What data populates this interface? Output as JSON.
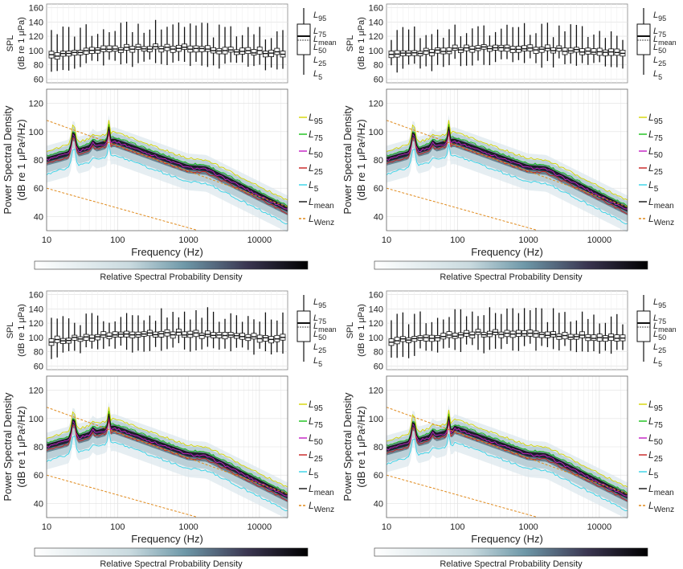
{
  "colors": {
    "L95": "#d4d400",
    "L75": "#16c016",
    "L50": "#c21bc2",
    "L25": "#c81e1e",
    "L5": "#34d2e6",
    "Lmean": "#111111",
    "LWenz": "#e08a1c",
    "grid": "#dddddd",
    "axis": "#222222",
    "density_low": "#ffffff",
    "density_mid": "#6e98a8",
    "density_high": "#000000"
  },
  "chart_data": [
    {
      "type": "composite",
      "panel": "top-left",
      "box_plot": {
        "ylabel_line1": "SPL",
        "ylabel_line2": "(dB re 1 μPa)",
        "ylim": [
          55,
          165
        ],
        "yticks": [
          "60",
          "80",
          "100",
          "120",
          "140",
          "160"
        ],
        "legend": {
          "L95": "95",
          "L75": "75",
          "Lmean": "mean",
          "L50": "50",
          "L25": "25",
          "L5": "5"
        }
      },
      "spectral_density": {
        "xlabel": "Frequency (Hz)",
        "ylabel_line1": "Power Spectral Density",
        "ylabel_line2": "(dB re 1 μPa²/Hz)",
        "xscale": "log",
        "xlim": [
          10,
          25000
        ],
        "ylim": [
          30,
          130
        ],
        "xticks": [
          "10",
          "100",
          "1000",
          "10000"
        ],
        "yticks": [
          "40",
          "60",
          "80",
          "100",
          "120"
        ],
        "colorbar_label": "Relative Spectral Probability Density",
        "legend_items": [
          {
            "key": "L95",
            "sub": "95"
          },
          {
            "key": "L75",
            "sub": "75"
          },
          {
            "key": "L50",
            "sub": "50"
          },
          {
            "key": "L25",
            "sub": "25"
          },
          {
            "key": "L5",
            "sub": "5"
          },
          {
            "key": "Lmean",
            "sub": "mean"
          },
          {
            "key": "LWenz",
            "sub": "Wenz"
          }
        ]
      }
    },
    {
      "type": "composite",
      "panel": "top-right",
      "box_plot": {
        "ylabel_line1": "SPL",
        "ylabel_line2": "(dB re 1 μPa)",
        "ylim": [
          55,
          165
        ],
        "yticks": [
          "60",
          "80",
          "100",
          "120",
          "140",
          "160"
        ],
        "legend": {
          "L95": "95",
          "L75": "75",
          "Lmean": "mean",
          "L50": "50",
          "L25": "25",
          "L5": "5"
        }
      },
      "spectral_density": {
        "xlabel": "Frequency (Hz)",
        "ylabel_line1": "Power Spectral Density",
        "ylabel_line2": "(dB re 1 μPa²/Hz)",
        "xscale": "log",
        "xlim": [
          10,
          25000
        ],
        "ylim": [
          30,
          130
        ],
        "xticks": [
          "10",
          "100",
          "1000",
          "10000"
        ],
        "yticks": [
          "40",
          "60",
          "80",
          "100",
          "120"
        ],
        "colorbar_label": "Relative Spectral Probability Density",
        "legend_items": [
          {
            "key": "L95",
            "sub": "95"
          },
          {
            "key": "L75",
            "sub": "75"
          },
          {
            "key": "L50",
            "sub": "50"
          },
          {
            "key": "L25",
            "sub": "25"
          },
          {
            "key": "L5",
            "sub": "5"
          },
          {
            "key": "Lmean",
            "sub": "mean"
          },
          {
            "key": "LWenz",
            "sub": "Wenz"
          }
        ]
      }
    },
    {
      "type": "composite",
      "panel": "bottom-left",
      "box_plot": {
        "ylabel_line1": "SPL",
        "ylabel_line2": "(dB re 1 μPa)",
        "ylim": [
          55,
          165
        ],
        "yticks": [
          "60",
          "80",
          "100",
          "120",
          "140",
          "160"
        ],
        "legend": {
          "L95": "95",
          "L75": "75",
          "Lmean": "mean",
          "L50": "50",
          "L25": "25",
          "L5": "5"
        }
      },
      "spectral_density": {
        "xlabel": "Frequency (Hz)",
        "ylabel_line1": "Power Spectral Density",
        "ylabel_line2": "(dB re 1 μPa²/Hz)",
        "xscale": "log",
        "xlim": [
          10,
          25000
        ],
        "ylim": [
          30,
          130
        ],
        "xticks": [
          "10",
          "100",
          "1000",
          "10000"
        ],
        "yticks": [
          "40",
          "60",
          "80",
          "100",
          "120"
        ],
        "colorbar_label": "Relative Spectral Probability Density",
        "legend_items": [
          {
            "key": "L95",
            "sub": "95"
          },
          {
            "key": "L75",
            "sub": "75"
          },
          {
            "key": "L50",
            "sub": "50"
          },
          {
            "key": "L25",
            "sub": "25"
          },
          {
            "key": "L5",
            "sub": "5"
          },
          {
            "key": "Lmean",
            "sub": "mean"
          },
          {
            "key": "LWenz",
            "sub": "Wenz"
          }
        ]
      }
    },
    {
      "type": "composite",
      "panel": "bottom-right",
      "box_plot": {
        "ylabel_line1": "SPL",
        "ylabel_line2": "(dB re 1 μPa)",
        "ylim": [
          55,
          165
        ],
        "yticks": [
          "60",
          "80",
          "100",
          "120",
          "140",
          "160"
        ],
        "legend": {
          "L95": "95",
          "L75": "75",
          "Lmean": "mean",
          "L50": "50",
          "L25": "25",
          "L5": "5"
        }
      },
      "spectral_density": {
        "xlabel": "Frequency (Hz)",
        "ylabel_line1": "Power Spectral Density",
        "ylabel_line2": "(dB re 1 μPa²/Hz)",
        "xscale": "log",
        "xlim": [
          10,
          25000
        ],
        "ylim": [
          30,
          130
        ],
        "xticks": [
          "10",
          "100",
          "1000",
          "10000"
        ],
        "yticks": [
          "40",
          "60",
          "80",
          "100",
          "120"
        ],
        "colorbar_label": "Relative Spectral Probability Density",
        "legend_items": [
          {
            "key": "L95",
            "sub": "95"
          },
          {
            "key": "L75",
            "sub": "75"
          },
          {
            "key": "L50",
            "sub": "50"
          },
          {
            "key": "L25",
            "sub": "25"
          },
          {
            "key": "L5",
            "sub": "5"
          },
          {
            "key": "Lmean",
            "sub": "mean"
          },
          {
            "key": "LWenz",
            "sub": "Wenz"
          }
        ]
      }
    }
  ]
}
